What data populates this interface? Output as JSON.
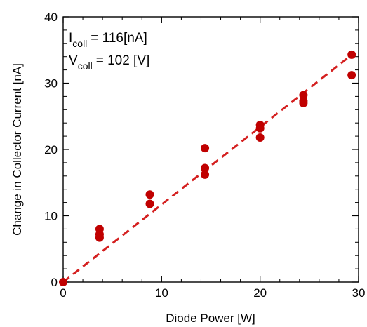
{
  "colors": {
    "marker": "#c00000",
    "fit_line": "#d42020",
    "axes": "#000000"
  },
  "chart_data": {
    "type": "scatter",
    "xlabel": "Diode Power [W]",
    "ylabel": "Change in Collector Current [nA]",
    "xlim": [
      0,
      30
    ],
    "ylim": [
      0,
      40
    ],
    "xticks": [
      "0",
      "10",
      "20",
      "30"
    ],
    "yticks": [
      "0",
      "10",
      "20",
      "30",
      "40"
    ],
    "grid": false,
    "annotations": [
      {
        "main": "I",
        "sub": "coll",
        "rest": "= 116[nA]"
      },
      {
        "main": "V",
        "sub": "coll",
        "rest": "= 102 [V]"
      }
    ],
    "series": [
      {
        "points": [
          [
            0,
            0
          ],
          [
            3.7,
            8.0
          ],
          [
            3.7,
            7.2
          ],
          [
            3.7,
            6.7
          ],
          [
            8.8,
            13.2
          ],
          [
            8.8,
            11.8
          ],
          [
            14.4,
            20.2
          ],
          [
            14.4,
            17.2
          ],
          [
            14.4,
            16.2
          ],
          [
            20.0,
            23.7
          ],
          [
            20.0,
            23.2
          ],
          [
            20.0,
            21.8
          ],
          [
            24.4,
            28.2
          ],
          [
            24.4,
            27.3
          ],
          [
            24.4,
            27.0
          ],
          [
            29.3,
            34.3
          ],
          [
            29.3,
            31.2
          ]
        ]
      }
    ],
    "fit_line": {
      "style": "dashed",
      "from": [
        0,
        0
      ],
      "to": [
        29.5,
        34.5
      ]
    }
  }
}
